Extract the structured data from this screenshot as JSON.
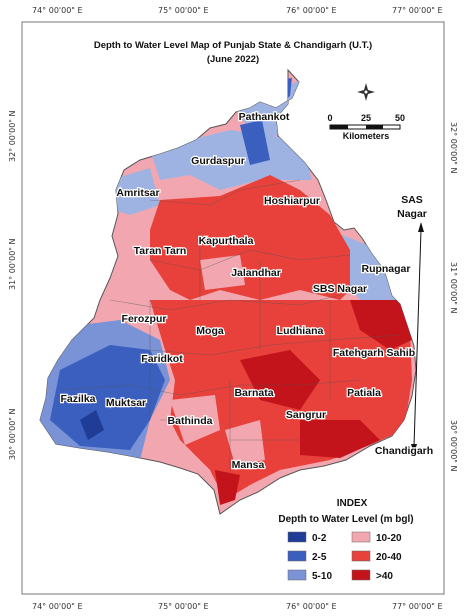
{
  "map": {
    "title": "Depth to Water Level Map of Punjab State & Chandigarh (U.T.)",
    "subtitle": "(June 2022)",
    "longitude_ticks_top": [
      "74° 00'00\" E",
      "75° 00'00\" E",
      "76° 00'00\" E",
      "77° 00'00\" E"
    ],
    "longitude_ticks_bottom": [
      "74° 00'00\" E",
      "75° 00'00\" E",
      "76° 00'00\" E",
      "77° 00'00\" E"
    ],
    "latitude_ticks_left": [
      "32° 00'00\" N",
      "31° 00'00\" N",
      "30° 00'00\" N"
    ],
    "latitude_ticks_right": [
      "32° 00'00\" N",
      "31° 00'00\" N",
      "30° 00'00\" N"
    ],
    "districts": {
      "pathankot": "Pathankot",
      "gurdaspur": "Gurdaspur",
      "amritsar": "Amritsar",
      "hoshiarpur": "Hoshiarpur",
      "taran_tarn": "Taran Tarn",
      "kapurthala": "Kapurthala",
      "jalandhar": "Jalandhar",
      "rupnagar": "Rupnagar",
      "sbs_nagar": "SBS Nagar",
      "ferozpur": "Ferozpur",
      "moga": "Moga",
      "ludhiana": "Ludhiana",
      "faridkot": "Faridkot",
      "fatehgarh_sahib": "Fatehgarh Sahib",
      "fazilka": "Fazilka",
      "muktsar": "Muktsar",
      "barnata": "Barnata",
      "patiala": "Patiala",
      "sangrur": "Sangrur",
      "bathinda": "Bathinda",
      "mansa": "Mansa",
      "sas_nagar_line1": "SAS",
      "sas_nagar_line2": "Nagar",
      "chandigarh": "Chandigarh"
    },
    "scale_bar": {
      "tick_labels": [
        "0",
        "25",
        "50"
      ],
      "unit": "Kilometers"
    },
    "north_arrow_icon": "compass-star-icon"
  },
  "legend": {
    "title": "INDEX",
    "subtitle": "Depth to Water Level (m bgl)",
    "items": [
      {
        "label": "0-2",
        "color": "#1f3c96"
      },
      {
        "label": "2-5",
        "color": "#3a5fbf"
      },
      {
        "label": "5-10",
        "color": "#7a92d6"
      },
      {
        "label": "10-20",
        "color": "#f2a7b0"
      },
      {
        "label": "20-40",
        "color": "#e8403a"
      },
      {
        "label": ">40",
        "color": "#c3141c"
      }
    ]
  }
}
